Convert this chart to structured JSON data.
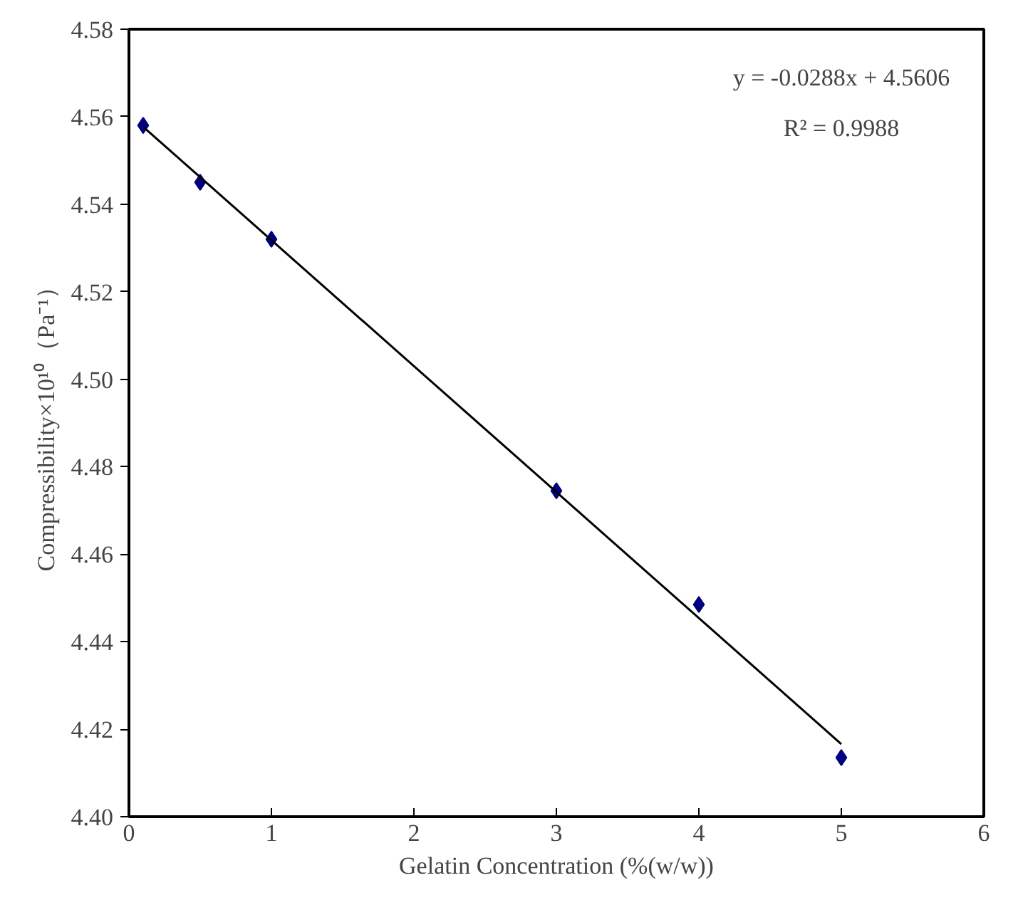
{
  "chart_data": {
    "type": "scatter",
    "xlabel": "Gelatin Concentration (%(w/w))",
    "ylabel": "Compressibility×10¹⁰（Pa⁻¹）",
    "x": [
      0.1,
      0.5,
      1,
      3,
      4,
      5
    ],
    "series": [
      {
        "color": "#000080",
        "values": [
          4.558,
          4.545,
          4.532,
          4.4745,
          4.4485,
          4.4135
        ],
        "marker": "diamond"
      },
      {
        "type": "line",
        "color": "#000000",
        "x": [
          0.1,
          5
        ],
        "values": [
          4.5577,
          4.4166
        ],
        "marker": "none",
        "line_style": "solid"
      }
    ],
    "annotations": [
      "y = -0.0288x + 4.5606",
      "R² = 0.9988"
    ],
    "xlim": [
      0,
      6
    ],
    "xticks": [
      0,
      1,
      2,
      3,
      4,
      5,
      6
    ],
    "ylim": [
      4.4,
      4.58
    ],
    "yticks": [
      {
        "value": 4.4,
        "label": "4.40"
      },
      {
        "value": 4.42,
        "label": "4.42"
      },
      {
        "value": 4.44,
        "label": "4.44"
      },
      {
        "value": 4.46,
        "label": "4.46"
      },
      {
        "value": 4.48,
        "label": "4.48"
      },
      {
        "value": 4.5,
        "label": "4.50"
      },
      {
        "value": 4.52,
        "label": "4.52"
      },
      {
        "value": 4.54,
        "label": "4.54"
      },
      {
        "value": 4.56,
        "label": "4.56"
      },
      {
        "value": 4.58,
        "label": "4.58"
      }
    ],
    "grid": false
  }
}
